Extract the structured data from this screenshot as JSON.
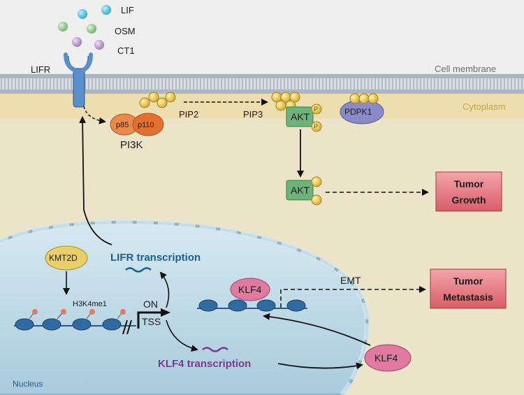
{
  "ligands": {
    "lif": "LIF",
    "osm": "OSM",
    "ct1": "CT1"
  },
  "membrane": {
    "receptor": "LIFR",
    "cell_membrane": "Cell membrane",
    "cytoplasm": "Cytoplasm"
  },
  "pi3k": {
    "p85": "p85",
    "p110": "p110",
    "label": "PI3K"
  },
  "lipids": {
    "pip2": "PIP2",
    "pip3": "PIP3"
  },
  "kinases": {
    "akt": "AKT",
    "pdpk1": "PDPK1",
    "phospho": "P"
  },
  "outcomes": {
    "growth_line1": "Tumor",
    "growth_line2": "Growth",
    "metastasis_line1": "Tumor",
    "metastasis_line2": "Metastasis",
    "emt": "EMT"
  },
  "nucleus": {
    "label": "Nucleus",
    "kmt2d": "KMT2D",
    "h3k4me1": "H3K4me1",
    "on": "ON",
    "tss": "TSS",
    "lifr_transcription": "LIFR transcription",
    "klf4_transcription": "KLF4 transcription",
    "klf4_nuclear": "KLF4",
    "klf4_cytoplasmic": "KLF4"
  },
  "colors": {
    "background": "#ece4c8",
    "membrane": "#b7c3cf",
    "nucleus_fill": "#c3dce8",
    "pi3k_orange": "#e98a4a",
    "akt_green": "#6db37a",
    "pdpk1_purple": "#8a8ac9",
    "klf4_pink": "#e07aa0",
    "outcome_red": "#e4707a",
    "phospho_yellow": "#e6c44a"
  }
}
